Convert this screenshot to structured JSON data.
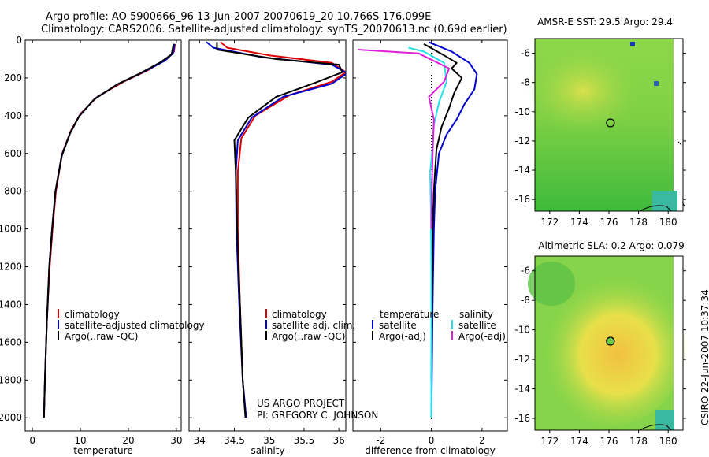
{
  "header": {
    "line1": "Argo profile: AO 5900666_96 13-Jun-2007 20070619_20 10.766S 176.099E",
    "line2": "Climatology: CARS2006. Satellite-adjusted climatology: synTS_20070613.nc (0.69d earlier)"
  },
  "sidenote": "CSIRO 22-Jun-2007 10:37:34",
  "credits": {
    "line1": "US ARGO PROJECT",
    "line2": "PI: GREGORY C. JOHNSON"
  },
  "colors": {
    "climatology": "#dd0000",
    "satellite": "#0000cc",
    "argo": "#000000",
    "cyan": "#22e0e8",
    "magenta": "#e020d8",
    "land": "#00a000"
  },
  "chart_data": [
    {
      "type": "line",
      "id": "temperature",
      "xlabel": "temperature",
      "ylabel": "",
      "xlim": [
        -1.5,
        31
      ],
      "ylim": [
        0,
        2070
      ],
      "y_reversed": true,
      "xticks": [
        0,
        10,
        20,
        30
      ],
      "yticks": [
        0,
        200,
        400,
        600,
        800,
        1000,
        1200,
        1400,
        1600,
        1800,
        2000
      ],
      "series": [
        {
          "name": "climatology",
          "color": "#dd0000",
          "x": [
            29.7,
            29.5,
            28.0,
            24.0,
            19.0,
            13.5,
            10.0,
            8.0,
            6.2,
            4.9,
            4.2,
            3.6,
            3.0,
            2.6,
            2.4
          ],
          "y": [
            20,
            60,
            100,
            160,
            220,
            300,
            390,
            480,
            600,
            800,
            1000,
            1200,
            1500,
            1800,
            1990
          ]
        },
        {
          "name": "satellite-adjusted climatology",
          "color": "#0000cc",
          "x": [
            29.6,
            29.3,
            27.5,
            23.0,
            18.0,
            13.0,
            9.8,
            7.9,
            6.1,
            4.8,
            4.1,
            3.5,
            3.0,
            2.6,
            2.4
          ],
          "y": [
            20,
            70,
            110,
            170,
            230,
            310,
            400,
            490,
            610,
            800,
            1000,
            1200,
            1500,
            1800,
            2000
          ]
        },
        {
          "name": "Argo(..raw -QC)",
          "color": "#000000",
          "x": [
            29.4,
            29.0,
            26.8,
            22.5,
            17.6,
            12.8,
            9.7,
            7.8,
            6.1,
            4.8,
            4.1,
            3.5,
            3.0,
            2.6,
            2.4
          ],
          "y": [
            20,
            75,
            115,
            175,
            235,
            315,
            405,
            495,
            615,
            800,
            1000,
            1200,
            1500,
            1800,
            2000
          ]
        }
      ],
      "legend": {
        "location": "bottom-right",
        "entries": [
          "climatology",
          "satellite-adjusted climatology",
          "Argo(..raw -QC)"
        ]
      }
    },
    {
      "type": "line",
      "id": "salinity",
      "xlabel": "salinity",
      "ylabel": "",
      "xlim": [
        33.85,
        36.1
      ],
      "ylim": [
        0,
        2070
      ],
      "y_reversed": true,
      "xticks": [
        34,
        34.5,
        35,
        35.5,
        36
      ],
      "xticklabels": [
        "34",
        "34.5",
        "35",
        "35.5",
        "36"
      ],
      "series": [
        {
          "name": "climatology",
          "color": "#dd0000",
          "x": [
            34.3,
            34.4,
            35.0,
            35.9,
            36.1,
            35.9,
            35.3,
            34.8,
            34.6,
            34.55,
            34.55,
            34.58,
            34.62,
            34.66
          ],
          "y": [
            10,
            40,
            80,
            120,
            170,
            220,
            290,
            400,
            520,
            700,
            1000,
            1400,
            1800,
            1990
          ]
        },
        {
          "name": "satellite adj. clim.",
          "color": "#0000cc",
          "x": [
            34.1,
            34.2,
            34.9,
            35.9,
            36.12,
            35.9,
            35.2,
            34.75,
            34.55,
            34.52,
            34.53,
            34.57,
            34.62,
            34.67
          ],
          "y": [
            10,
            40,
            90,
            130,
            175,
            230,
            300,
            410,
            530,
            700,
            1000,
            1400,
            1800,
            2000
          ]
        },
        {
          "name": "Argo(..raw -QC)",
          "color": "#000000",
          "x": [
            34.25,
            34.25,
            35.1,
            36.0,
            36.05,
            35.7,
            35.1,
            34.7,
            34.5,
            34.52,
            34.54,
            34.58,
            34.62,
            34.66
          ],
          "y": [
            10,
            50,
            100,
            130,
            170,
            220,
            300,
            410,
            530,
            700,
            1000,
            1400,
            1800,
            2000
          ]
        }
      ],
      "legend": {
        "location": "bottom-right",
        "entries": [
          "climatology",
          "satellite adj. clim.",
          "Argo(..raw -QC)"
        ]
      }
    },
    {
      "type": "line",
      "id": "difference",
      "xlabel": "difference from climatology",
      "ylabel": "",
      "xlim": [
        -3.1,
        3.0
      ],
      "ylim": [
        0,
        2070
      ],
      "y_reversed": true,
      "xticks": [
        -2,
        0,
        2
      ],
      "series": [
        {
          "name": "temperature satellite",
          "color": "#0000cc",
          "x": [
            -0.1,
            0.8,
            1.5,
            1.8,
            1.7,
            1.3,
            1.0,
            0.6,
            0.3,
            0.15,
            0.1,
            0.05,
            0.02,
            0.0
          ],
          "y": [
            10,
            60,
            120,
            180,
            260,
            340,
            420,
            500,
            600,
            800,
            1000,
            1400,
            1800,
            2000
          ]
        },
        {
          "name": "temperature Argo(-adj)",
          "color": "#000000",
          "x": [
            -0.3,
            0.5,
            1.0,
            0.8,
            1.2,
            0.9,
            0.7,
            0.4,
            0.2,
            0.1,
            0.05,
            0.02,
            0.0
          ],
          "y": [
            20,
            80,
            120,
            150,
            200,
            280,
            360,
            460,
            580,
            800,
            1000,
            1400,
            1800
          ]
        },
        {
          "name": "salinity satellite",
          "color": "#22e0e8",
          "x": [
            -0.9,
            -0.3,
            0.5,
            0.6,
            0.3,
            0.1,
            0.05,
            -0.05,
            -0.02,
            0.0,
            0.0,
            0.0
          ],
          "y": [
            40,
            60,
            120,
            220,
            330,
            450,
            560,
            700,
            900,
            1200,
            1600,
            2000
          ]
        },
        {
          "name": "salinity Argo(-adj)",
          "color": "#e020d8",
          "x": [
            -2.9,
            -0.5,
            0.7,
            0.5,
            -0.1,
            0.1,
            0.05,
            0.02,
            0.0
          ],
          "y": [
            50,
            70,
            150,
            220,
            300,
            420,
            600,
            800,
            1000
          ]
        }
      ],
      "legend": {
        "location": "bottom",
        "headers": [
          "temperature",
          "salinity"
        ],
        "entries": [
          "satellite",
          "Argo(-adj)",
          "satellite",
          "Argo(-adj)"
        ]
      }
    },
    {
      "type": "heatmap",
      "id": "sst-map",
      "title": "AMSR-E SST: 29.5  Argo: 29.4",
      "xlim": [
        171,
        181
      ],
      "ylim": [
        -16.8,
        -5
      ],
      "xticks": [
        172,
        174,
        176,
        178,
        180
      ],
      "yticks": [
        -6,
        -8,
        -10,
        -12,
        -14,
        -16
      ],
      "marker": {
        "lon": 176.099,
        "lat": -10.766
      }
    },
    {
      "type": "heatmap",
      "id": "sla-map",
      "title": "Altimetric SLA: 0.2  Argo: 0.079",
      "xlim": [
        171,
        181
      ],
      "ylim": [
        -16.8,
        -5
      ],
      "xticks": [
        172,
        174,
        176,
        178,
        180
      ],
      "yticks": [
        -6,
        -8,
        -10,
        -12,
        -14,
        -16
      ],
      "marker": {
        "lon": 176.099,
        "lat": -10.766
      }
    }
  ]
}
